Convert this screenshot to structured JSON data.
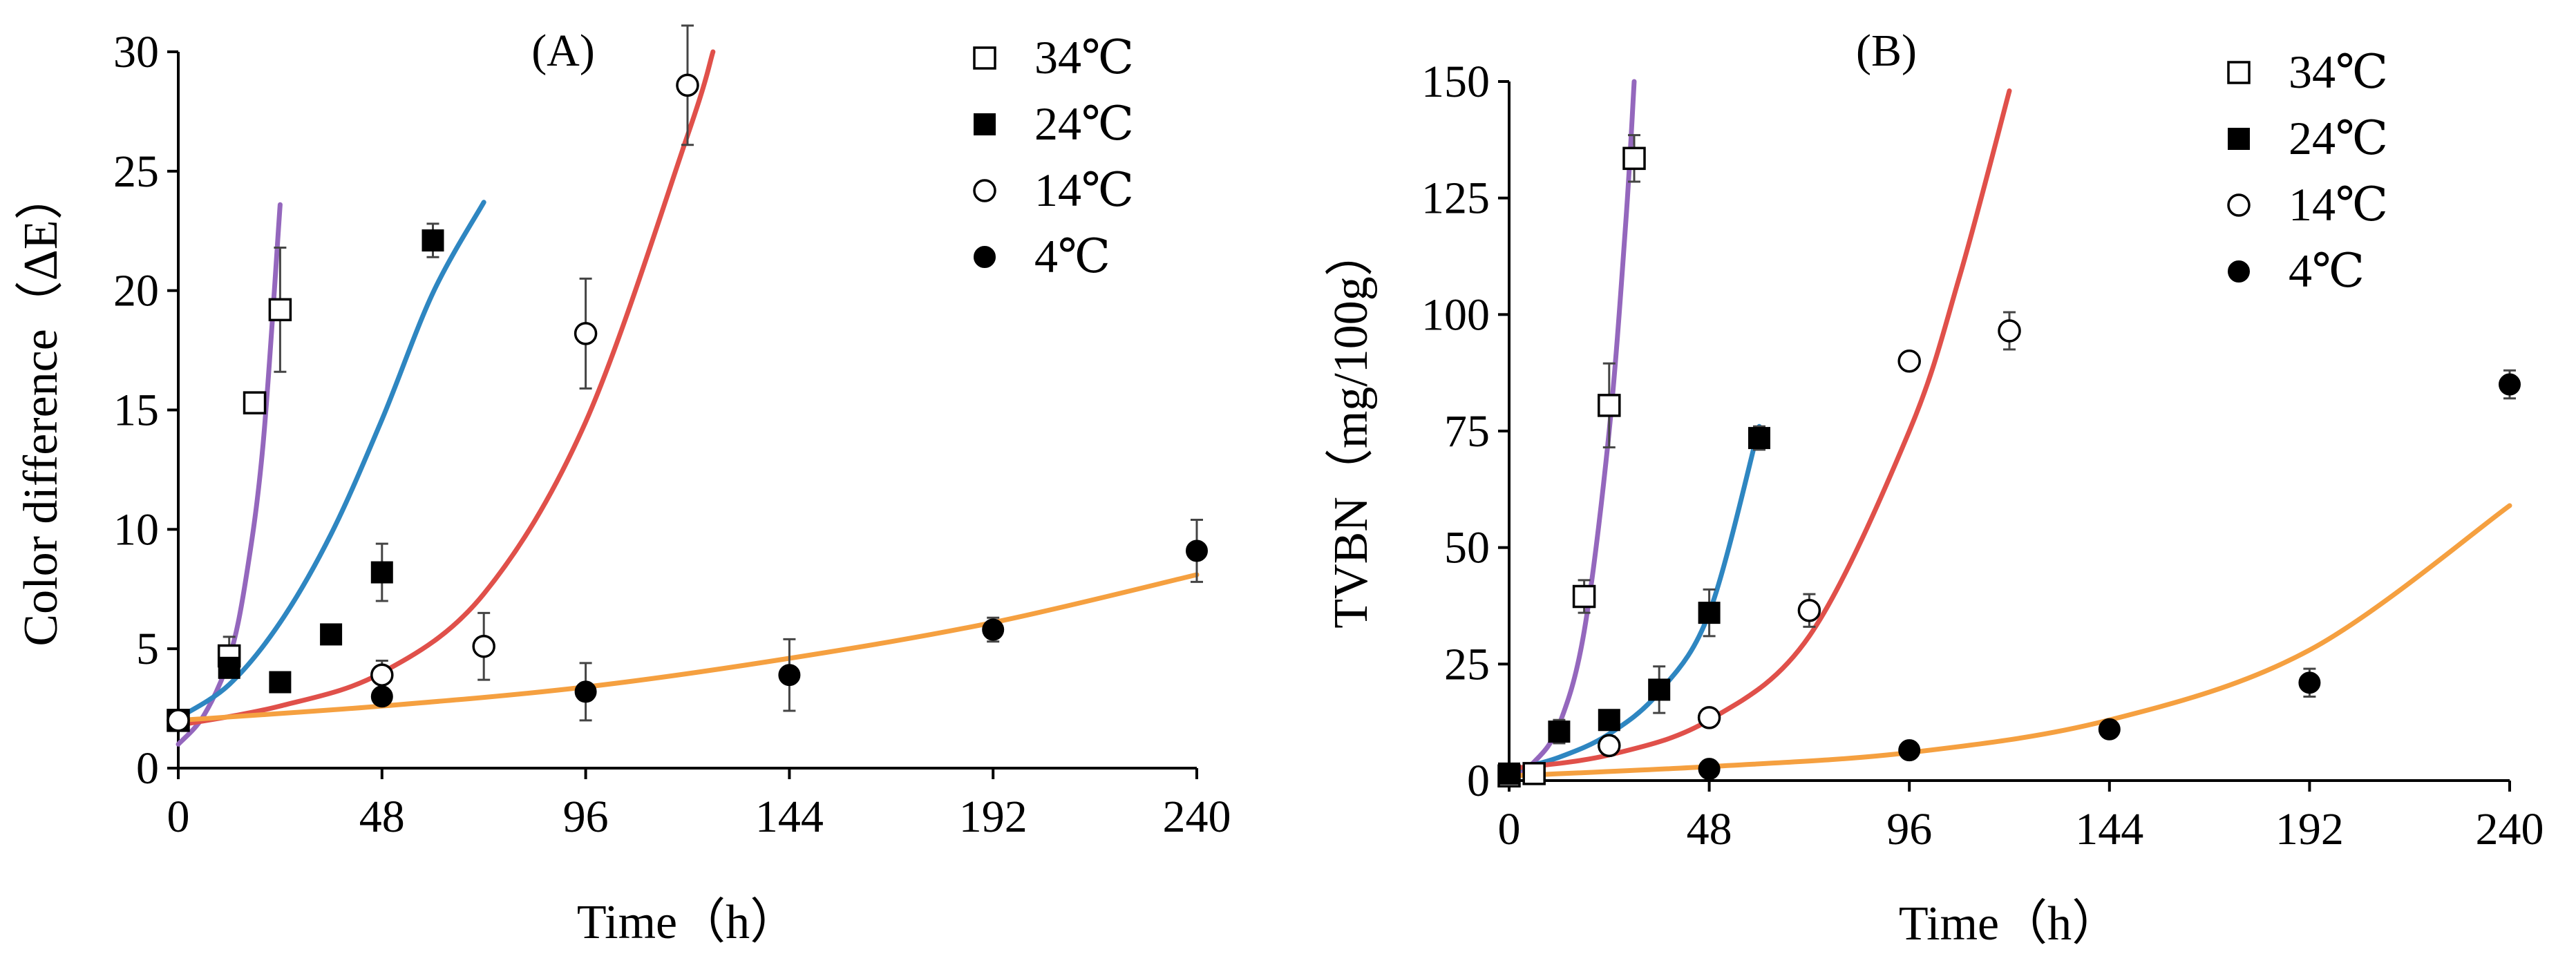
{
  "chart_data": [
    {
      "panel": "(A)",
      "type": "scatter",
      "title": "",
      "xlabel": "Time（h）",
      "ylabel": "Color difference（ΔE）",
      "xlim": [
        0,
        240
      ],
      "ylim": [
        0,
        30
      ],
      "xticks": [
        0,
        48,
        96,
        144,
        192,
        240
      ],
      "yticks": [
        0,
        5,
        10,
        15,
        20,
        25,
        30
      ],
      "grid": false,
      "legend_position": "top-right",
      "series": [
        {
          "name": "34℃",
          "marker": "square-open",
          "fit_color": "#9467bd",
          "points": [
            [
              0,
              2.0
            ],
            [
              12,
              4.7
            ],
            [
              18,
              15.3
            ],
            [
              24,
              19.2
            ]
          ],
          "errors": [
            0.2,
            0.8,
            0.3,
            2.6
          ],
          "fit": [
            [
              0,
              1.0
            ],
            [
              6,
              2.2
            ],
            [
              12,
              4.6
            ],
            [
              16,
              8.0
            ],
            [
              20,
              13.6
            ],
            [
              24,
              23.6
            ]
          ]
        },
        {
          "name": "24℃",
          "marker": "square-filled",
          "fit_color": "#2e86c1",
          "points": [
            [
              0,
              2.0
            ],
            [
              12,
              4.2
            ],
            [
              24,
              3.6
            ],
            [
              36,
              5.6
            ],
            [
              48,
              8.2
            ],
            [
              60,
              22.1
            ]
          ],
          "errors": [
            0.2,
            0.4,
            0.3,
            0.3,
            1.2,
            0.7
          ],
          "fit": [
            [
              0,
              2.1
            ],
            [
              12,
              3.5
            ],
            [
              24,
              6.1
            ],
            [
              36,
              9.8
            ],
            [
              48,
              14.6
            ],
            [
              60,
              19.9
            ],
            [
              72,
              23.7
            ]
          ]
        },
        {
          "name": "14℃",
          "marker": "circle-open",
          "fit_color": "#e0504a",
          "points": [
            [
              0,
              2.0
            ],
            [
              48,
              3.9
            ],
            [
              72,
              5.1
            ],
            [
              96,
              18.2
            ],
            [
              120,
              28.6
            ]
          ],
          "errors": [
            0.2,
            0.6,
            1.4,
            2.3,
            2.5
          ],
          "fit": [
            [
              0,
              1.8
            ],
            [
              24,
              2.6
            ],
            [
              48,
              4.0
            ],
            [
              72,
              7.3
            ],
            [
              96,
              14.5
            ],
            [
              120,
              26.5
            ],
            [
              126,
              30.0
            ]
          ]
        },
        {
          "name": "4℃",
          "marker": "circle-filled",
          "fit_color": "#f5a040",
          "points": [
            [
              48,
              3.0
            ],
            [
              96,
              3.2
            ],
            [
              144,
              3.9
            ],
            [
              192,
              5.8
            ],
            [
              240,
              9.1
            ]
          ],
          "errors": [
            0.3,
            1.2,
            1.5,
            0.5,
            1.3
          ],
          "fit": [
            [
              0,
              2.0
            ],
            [
              48,
              2.6
            ],
            [
              96,
              3.4
            ],
            [
              144,
              4.6
            ],
            [
              192,
              6.1
            ],
            [
              240,
              8.1
            ]
          ]
        }
      ]
    },
    {
      "panel": "(B)",
      "type": "scatter",
      "title": "",
      "xlabel": "Time（h）",
      "ylabel": "TVBN（mg/100g）",
      "xlim": [
        0,
        240
      ],
      "ylim": [
        0,
        150
      ],
      "xticks": [
        0,
        48,
        96,
        144,
        192,
        240
      ],
      "yticks": [
        0,
        25,
        50,
        75,
        100,
        125,
        150
      ],
      "grid": false,
      "legend_position": "top-right",
      "series": [
        {
          "name": "34℃",
          "marker": "square-open",
          "fit_color": "#9467bd",
          "points": [
            [
              0,
              1.0
            ],
            [
              6,
              1.5
            ],
            [
              18,
              39.5
            ],
            [
              24,
              80.5
            ],
            [
              30,
              133.5
            ]
          ],
          "errors": [
            0.5,
            0.5,
            3.5,
            9.0,
            5.0
          ],
          "fit": [
            [
              0,
              1.0
            ],
            [
              6,
              4.0
            ],
            [
              12,
              12.0
            ],
            [
              18,
              32.0
            ],
            [
              24,
              75.0
            ],
            [
              28,
              120.0
            ],
            [
              30,
              150.0
            ]
          ]
        },
        {
          "name": "24℃",
          "marker": "square-filled",
          "fit_color": "#2e86c1",
          "points": [
            [
              0,
              1.5
            ],
            [
              12,
              10.5
            ],
            [
              24,
              13.0
            ],
            [
              36,
              19.5
            ],
            [
              48,
              36.0
            ],
            [
              60,
              73.5
            ]
          ],
          "errors": [
            0.5,
            2.5,
            2.0,
            5.0,
            5.0,
            2.5
          ],
          "fit": [
            [
              0,
              2.0
            ],
            [
              12,
              5.0
            ],
            [
              24,
              10.0
            ],
            [
              36,
              19.0
            ],
            [
              48,
              36.0
            ],
            [
              60,
              76.0
            ]
          ]
        },
        {
          "name": "14℃",
          "marker": "circle-open",
          "fit_color": "#e0504a",
          "points": [
            [
              24,
              7.5
            ],
            [
              48,
              13.5
            ],
            [
              72,
              36.5
            ],
            [
              96,
              90.0
            ],
            [
              120,
              96.5
            ]
          ],
          "errors": [
            2.0,
            1.5,
            3.5,
            1.5,
            4.0
          ],
          "fit": [
            [
              0,
              2.5
            ],
            [
              24,
              5.5
            ],
            [
              48,
              13.0
            ],
            [
              72,
              31.0
            ],
            [
              96,
              75.0
            ],
            [
              108,
              108.0
            ],
            [
              120,
              148.0
            ]
          ]
        },
        {
          "name": "4℃",
          "marker": "circle-filled",
          "fit_color": "#f5a040",
          "points": [
            [
              48,
              2.5
            ],
            [
              96,
              6.5
            ],
            [
              144,
              11.0
            ],
            [
              192,
              21.0
            ],
            [
              240,
              85.0
            ]
          ],
          "errors": [
            0.5,
            0.8,
            0.8,
            3.0,
            3.0
          ],
          "fit": [
            [
              0,
              1.0
            ],
            [
              48,
              3.0
            ],
            [
              96,
              6.0
            ],
            [
              144,
              13.0
            ],
            [
              192,
              28.0
            ],
            [
              240,
              59.0
            ]
          ]
        }
      ]
    }
  ]
}
